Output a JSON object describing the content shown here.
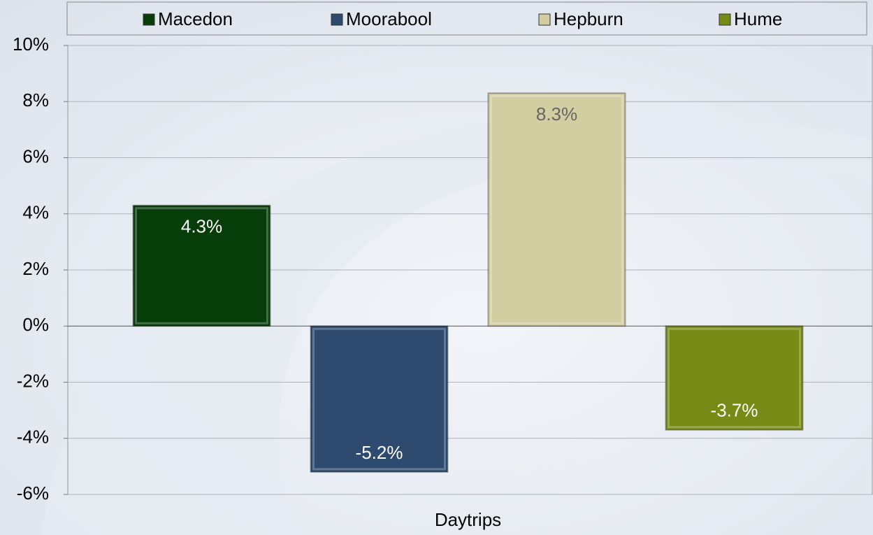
{
  "chart_data": {
    "type": "bar",
    "categories": [
      "Daytrips"
    ],
    "series": [
      {
        "name": "Macedon",
        "color": "#063d08",
        "values": [
          4.3
        ],
        "value_labels": [
          "4.3%"
        ]
      },
      {
        "name": "Moorabool",
        "color": "#2e4a6e",
        "values": [
          -5.2
        ],
        "value_labels": [
          "-5.2%"
        ]
      },
      {
        "name": "Hepburn",
        "color": "#d3cda2",
        "values": [
          8.3
        ],
        "value_labels": [
          "8.3%"
        ]
      },
      {
        "name": "Hume",
        "color": "#778a16",
        "values": [
          -3.7
        ],
        "value_labels": [
          "-3.7%"
        ]
      }
    ],
    "ylim": [
      -6,
      10
    ],
    "yticks": [
      {
        "value": -6,
        "label": "-6%"
      },
      {
        "value": -4,
        "label": "-4%"
      },
      {
        "value": -2,
        "label": "-2%"
      },
      {
        "value": 0,
        "label": "0%"
      },
      {
        "value": 2,
        "label": "2%"
      },
      {
        "value": 4,
        "label": "4%"
      },
      {
        "value": 6,
        "label": "6%"
      },
      {
        "value": 8,
        "label": "8%"
      },
      {
        "value": 10,
        "label": "10%"
      }
    ],
    "grid": true,
    "legend": "top"
  }
}
